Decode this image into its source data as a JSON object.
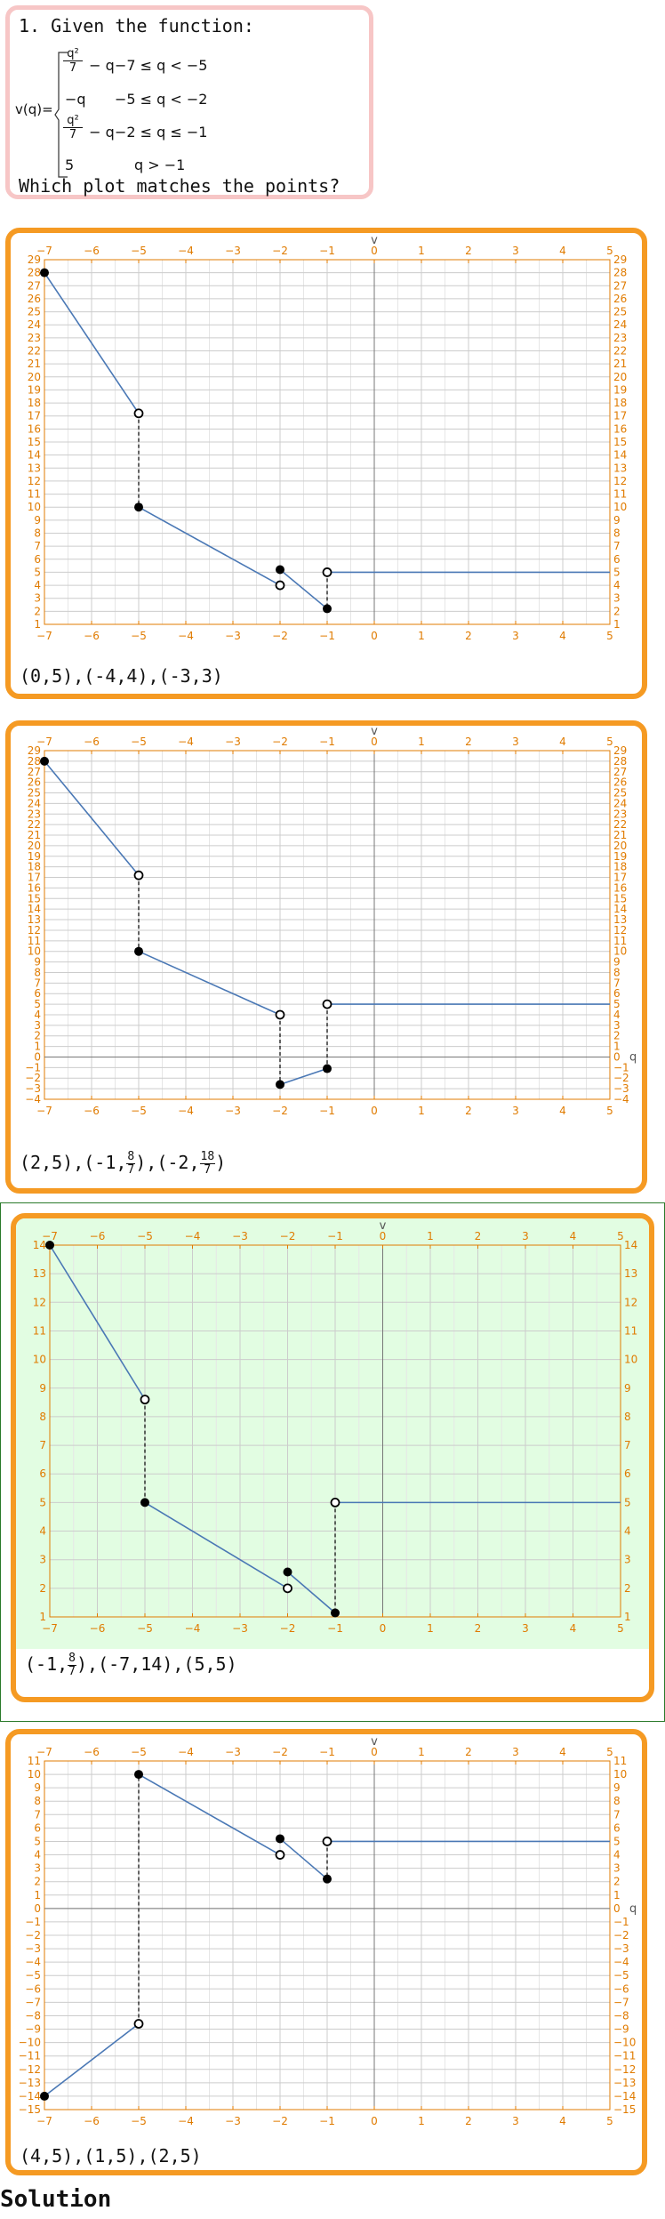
{
  "question": {
    "title": "1. Given the function:",
    "func_name": "v(q)=",
    "cases": [
      {
        "expr_num": "q²",
        "expr_den": "7",
        "expr_rest": " − q",
        "cond": "−7 ≤ q < −5"
      },
      {
        "expr": "−q",
        "cond": "−5 ≤ q < −2"
      },
      {
        "expr_num": "q²",
        "expr_den": "7",
        "expr_rest": " − q",
        "cond": "−2 ≤ q ≤ −1"
      },
      {
        "expr": "5",
        "cond": "q > −1"
      }
    ],
    "prompt": "Which plot matches the points?"
  },
  "solution_label": "Solution",
  "colors": {
    "accent": "#f59a23",
    "correct_bg": "#e2fde2",
    "curve": "#4a78b5",
    "tick": "#e07b00"
  },
  "options": [
    {
      "points_text": [
        {
          "t": "(0,5),(-4,4),(-3,3)"
        }
      ],
      "correct": false,
      "chart_data": {
        "type": "line",
        "xlabel": "v",
        "ylabel": "",
        "xlim": [
          -7,
          5
        ],
        "ylim": [
          1,
          29
        ],
        "xticks": [
          -7,
          -6,
          -5,
          -4,
          -3,
          -2,
          -1,
          0,
          1,
          2,
          3,
          4,
          5
        ],
        "yticks": [
          1,
          2,
          3,
          4,
          5,
          6,
          7,
          8,
          9,
          10,
          11,
          12,
          13,
          14,
          15,
          16,
          17,
          18,
          19,
          20,
          21,
          22,
          23,
          24,
          25,
          26,
          27,
          28,
          29
        ],
        "segments": [
          {
            "type": "curve",
            "f": "q*q/7-q",
            "from": -7,
            "to": -5
          },
          {
            "type": "curve",
            "f": "(q*q-q)",
            "from": -5,
            "to": -2,
            "scale": 0.5
          },
          {
            "type": "curve",
            "f": "q*q/7-q",
            "from": -2,
            "to": -1,
            "mul": 1.0
          },
          {
            "type": "line",
            "from": [
              -1,
              5
            ],
            "to": [
              5,
              5
            ]
          }
        ],
        "polyline": [
          [
            -7,
            28
          ],
          [
            -5,
            17.2
          ],
          null,
          [
            -5,
            10
          ],
          [
            -2,
            4
          ],
          null,
          [
            -2,
            5.2
          ],
          [
            -1,
            2.2
          ],
          null,
          [
            -1,
            5
          ],
          [
            5,
            5
          ]
        ],
        "dashes": [
          [
            [
              -5,
              17.2
            ],
            [
              -5,
              10
            ]
          ],
          [
            [
              -1,
              5
            ],
            [
              -1,
              2.2
            ]
          ]
        ],
        "filled": [
          [
            -7,
            28
          ],
          [
            -5,
            10
          ],
          [
            -2,
            5.2
          ],
          [
            -1,
            2.2
          ]
        ],
        "open": [
          [
            -5,
            17.2
          ],
          [
            -2,
            4
          ],
          [
            -1,
            5
          ]
        ]
      }
    },
    {
      "points_text": [
        {
          "t": "(2,5),(-1,"
        },
        {
          "frac": [
            "8",
            "7"
          ]
        },
        {
          "t": "),(-2,"
        },
        {
          "frac": [
            "18",
            "7"
          ]
        },
        {
          "t": ")"
        }
      ],
      "correct": false,
      "chart_data": {
        "type": "line",
        "xlabel": "v",
        "ylabel": "q",
        "xlim": [
          -7,
          5
        ],
        "ylim": [
          -4,
          29
        ],
        "xticks": [
          -7,
          -6,
          -5,
          -4,
          -3,
          -2,
          -1,
          0,
          1,
          2,
          3,
          4,
          5
        ],
        "yticks": [
          -4,
          -3,
          -2,
          -1,
          0,
          1,
          2,
          3,
          4,
          5,
          6,
          7,
          8,
          9,
          10,
          11,
          12,
          13,
          14,
          15,
          16,
          17,
          18,
          19,
          20,
          21,
          22,
          23,
          24,
          25,
          26,
          27,
          28,
          29
        ],
        "polyline": [
          [
            -7,
            28
          ],
          [
            -5,
            17.2
          ],
          null,
          [
            -5,
            10
          ],
          [
            -2,
            4
          ],
          null,
          [
            -2,
            -2.6
          ],
          [
            -1,
            -1.1
          ],
          null,
          [
            -1,
            5
          ],
          [
            5,
            5
          ]
        ],
        "dashes": [
          [
            [
              -5,
              17.2
            ],
            [
              -5,
              10
            ]
          ],
          [
            [
              -2,
              4
            ],
            [
              -2,
              -2.6
            ]
          ],
          [
            [
              -1,
              5
            ],
            [
              -1,
              -1.1
            ]
          ]
        ],
        "filled": [
          [
            -7,
            28
          ],
          [
            -5,
            10
          ],
          [
            -2,
            -2.6
          ],
          [
            -1,
            -1.1
          ]
        ],
        "open": [
          [
            -5,
            17.2
          ],
          [
            -2,
            4
          ],
          [
            -1,
            5
          ]
        ]
      }
    },
    {
      "points_text": [
        {
          "t": "(-1,"
        },
        {
          "frac": [
            "8",
            "7"
          ]
        },
        {
          "t": "),(-7,14),(5,5)"
        }
      ],
      "correct": true,
      "chart_data": {
        "type": "line",
        "xlabel": "v",
        "ylabel": "",
        "xlim": [
          -7,
          5
        ],
        "ylim": [
          1,
          14
        ],
        "xticks": [
          -7,
          -6,
          -5,
          -4,
          -3,
          -2,
          -1,
          0,
          1,
          2,
          3,
          4,
          5
        ],
        "yticks": [
          1,
          2,
          3,
          4,
          5,
          6,
          7,
          8,
          9,
          10,
          11,
          12,
          13,
          14
        ],
        "polyline": [
          [
            -7,
            14
          ],
          [
            -5,
            8.6
          ],
          null,
          [
            -5,
            5
          ],
          [
            -2,
            2
          ],
          null,
          [
            -2,
            2.57
          ],
          [
            -1,
            1.14
          ],
          null,
          [
            -1,
            5
          ],
          [
            5,
            5
          ]
        ],
        "dashes": [
          [
            [
              -5,
              8.6
            ],
            [
              -5,
              5
            ]
          ],
          [
            [
              -1,
              5
            ],
            [
              -1,
              1.14
            ]
          ]
        ],
        "filled": [
          [
            -7,
            14
          ],
          [
            -5,
            5
          ],
          [
            -2,
            2.57
          ],
          [
            -1,
            1.14
          ]
        ],
        "open": [
          [
            -5,
            8.6
          ],
          [
            -2,
            2
          ],
          [
            -1,
            5
          ]
        ]
      }
    },
    {
      "points_text": [
        {
          "t": "(4,5),(1,5),(2,5)"
        }
      ],
      "correct": false,
      "chart_data": {
        "type": "line",
        "xlabel": "v",
        "ylabel": "q",
        "xlim": [
          -7,
          5
        ],
        "ylim": [
          -15,
          11
        ],
        "xticks": [
          -7,
          -6,
          -5,
          -4,
          -3,
          -2,
          -1,
          0,
          1,
          2,
          3,
          4,
          5
        ],
        "yticks": [
          -15,
          -14,
          -13,
          -12,
          -11,
          -10,
          -9,
          -8,
          -7,
          -6,
          -5,
          -4,
          -3,
          -2,
          -1,
          0,
          1,
          2,
          3,
          4,
          5,
          6,
          7,
          8,
          9,
          10,
          11
        ],
        "polyline": [
          [
            -7,
            -14
          ],
          [
            -5,
            -8.6
          ],
          null,
          [
            -5,
            10
          ],
          [
            -2,
            4
          ],
          null,
          [
            -2,
            5.2
          ],
          [
            -1,
            2.2
          ],
          null,
          [
            -1,
            5
          ],
          [
            5,
            5
          ]
        ],
        "dashes": [
          [
            [
              -5,
              -8.6
            ],
            [
              -5,
              10
            ]
          ],
          [
            [
              -1,
              5
            ],
            [
              -1,
              2.2
            ]
          ]
        ],
        "filled": [
          [
            -7,
            -14
          ],
          [
            -5,
            10
          ],
          [
            -2,
            5.2
          ],
          [
            -1,
            2.2
          ]
        ],
        "open": [
          [
            -5,
            -8.6
          ],
          [
            -2,
            4
          ],
          [
            -1,
            5
          ]
        ]
      }
    }
  ]
}
